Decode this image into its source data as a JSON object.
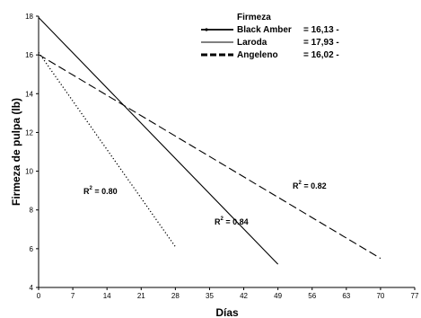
{
  "chart_data": {
    "type": "line",
    "xlabel": "Días",
    "ylabel": "Firmeza de pulpa (lb)",
    "xlim": [
      0,
      77
    ],
    "ylim": [
      4,
      18
    ],
    "xticks": [
      0,
      7,
      14,
      21,
      28,
      35,
      42,
      49,
      56,
      63,
      70,
      77
    ],
    "yticks": [
      4,
      6,
      8,
      10,
      12,
      14,
      16,
      18
    ],
    "grid": false,
    "legend": {
      "title": "Firmeza",
      "position": "top-right"
    },
    "series": [
      {
        "name": "Black Amber",
        "equation": "= 16,13 -",
        "style": "dotted",
        "r2_base": "R",
        "r2_exp": "2",
        "r2_value": " = 0.80",
        "x": [
          0,
          28
        ],
        "y": [
          16.13,
          6.1
        ]
      },
      {
        "name": "Laroda",
        "equation": "= 17,93 -",
        "style": "solid",
        "r2_base": "R",
        "r2_exp": "2",
        "r2_value": " = 0.84",
        "x": [
          0,
          49
        ],
        "y": [
          17.93,
          5.2
        ]
      },
      {
        "name": "Angeleno",
        "equation": "= 16,02 -",
        "style": "dashed",
        "r2_base": "R",
        "r2_exp": "2",
        "r2_value": " = 0.82",
        "x": [
          0,
          70
        ],
        "y": [
          16.02,
          5.5
        ]
      }
    ]
  }
}
